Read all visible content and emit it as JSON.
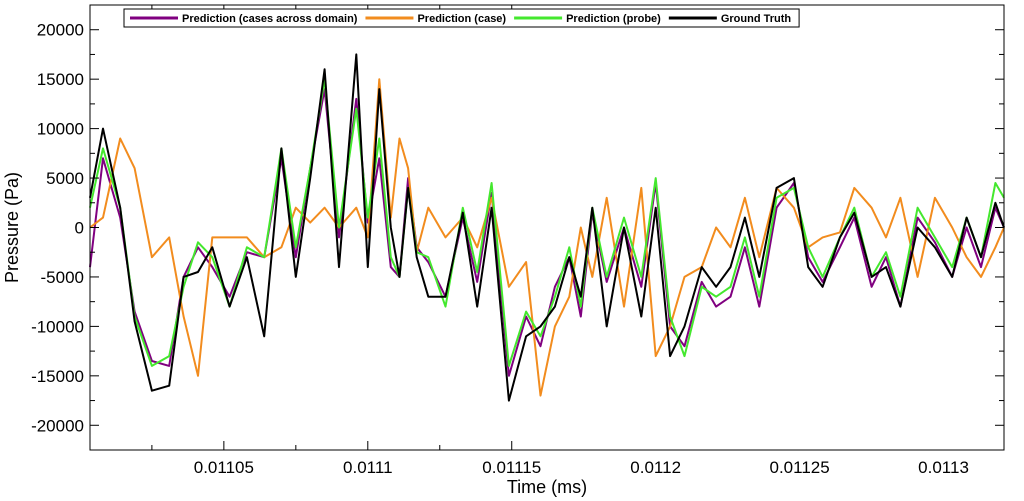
{
  "chart_data": {
    "type": "line",
    "xlabel": "Time (ms)",
    "ylabel": "Pressure (Pa)",
    "xlim": [
      0.0110035,
      0.011321
    ],
    "ylim": [
      -22500,
      22500
    ],
    "x_ticks": [
      0.01105,
      0.0111,
      0.01115,
      0.0112,
      0.01125,
      0.0113
    ],
    "x_tick_labels": [
      "0.01105",
      "0.0111",
      "0.01115",
      "0.0112",
      "0.01125",
      "0.0113"
    ],
    "y_ticks": [
      -20000,
      -15000,
      -10000,
      -5000,
      0,
      5000,
      10000,
      15000,
      20000
    ],
    "y_tick_labels": [
      "-20000",
      "-15000",
      "-10000",
      "-5000",
      "0",
      "5000",
      "10000",
      "15000",
      "20000"
    ],
    "grid": false,
    "legend_placement": "top-left",
    "x": [
      0.0110035,
      0.011008,
      0.011014,
      0.011019,
      0.011025,
      0.011031,
      0.011036,
      0.011041,
      0.011046,
      0.011052,
      0.011058,
      0.011064,
      0.01107,
      0.011075,
      0.01108,
      0.011085,
      0.01109,
      0.011096,
      0.0111,
      0.011104,
      0.011108,
      0.011111,
      0.011114,
      0.011117,
      0.011121,
      0.011127,
      0.011133,
      0.011138,
      0.011143,
      0.011149,
      0.011155,
      0.01116,
      0.011165,
      0.01117,
      0.011174,
      0.011178,
      0.011183,
      0.011189,
      0.011195,
      0.0112,
      0.011205,
      0.01121,
      0.011216,
      0.011221,
      0.011226,
      0.011231,
      0.011236,
      0.011242,
      0.011248,
      0.011253,
      0.011258,
      0.011264,
      0.011269,
      0.011275,
      0.01128,
      0.011285,
      0.011291,
      0.011297,
      0.011303,
      0.011308,
      0.011313,
      0.011318,
      0.011321
    ],
    "series": [
      {
        "name": "Prediction (cases across domain)",
        "color": "#800080",
        "values": [
          -4000,
          7000,
          1000,
          -8500,
          -13500,
          -14000,
          -5000,
          -2000,
          -4000,
          -7000,
          -2500,
          -3000,
          7000,
          -3000,
          6000,
          14000,
          -1000,
          13000,
          500,
          7000,
          -4000,
          -5000,
          5000,
          -2000,
          -3500,
          -7000,
          1000,
          -5500,
          3500,
          -15000,
          -9000,
          -12000,
          -6000,
          -3000,
          -9000,
          1500,
          -5500,
          0,
          -6000,
          4500,
          -10000,
          -12000,
          -5500,
          -8000,
          -7000,
          -2000,
          -8000,
          2000,
          4500,
          -3000,
          -5500,
          -2000,
          1000,
          -6000,
          -3000,
          -8000,
          1000,
          -1500,
          -5000,
          0,
          -4000,
          2000,
          0
        ]
      },
      {
        "name": "Prediction (case)",
        "color": "#F28C1E",
        "values": [
          0,
          1000,
          9000,
          6000,
          -3000,
          -1000,
          -9000,
          -15000,
          -1000,
          -1000,
          -1000,
          -3000,
          -2000,
          2000,
          500,
          2000,
          0,
          2000,
          -1000,
          15000,
          1000,
          9000,
          6000,
          -2500,
          2000,
          -1000,
          1000,
          -2000,
          3000,
          -6000,
          -3500,
          -17000,
          -10000,
          -7000,
          0,
          -5000,
          3000,
          -8000,
          4000,
          -13000,
          -10000,
          -5000,
          -4000,
          0,
          -2000,
          3000,
          -3000,
          4000,
          2000,
          -2000,
          -1000,
          -500,
          4000,
          2000,
          -1000,
          3000,
          -5000,
          3000,
          0,
          -3000,
          -5000,
          -2000,
          0
        ]
      },
      {
        "name": "Prediction (probe)",
        "color": "#44E82E",
        "values": [
          2000,
          8000,
          2000,
          -9000,
          -14000,
          -13000,
          -6000,
          -1500,
          -3000,
          -8000,
          -2000,
          -3000,
          8000,
          -2000,
          6000,
          15000,
          0,
          12000,
          1000,
          9000,
          -3000,
          -5000,
          4000,
          -2500,
          -3000,
          -8000,
          2000,
          -4500,
          4500,
          -14000,
          -8500,
          -11000,
          -7000,
          -2000,
          -8000,
          2000,
          -5000,
          1000,
          -5000,
          5000,
          -9000,
          -13000,
          -6000,
          -7000,
          -6000,
          -1000,
          -7000,
          3000,
          4000,
          -2000,
          -5000,
          -1000,
          2000,
          -5000,
          -2500,
          -7000,
          2000,
          -1000,
          -4000,
          1000,
          -3000,
          4500,
          3000
        ]
      },
      {
        "name": "Ground Truth",
        "color": "#000000",
        "values": [
          3000,
          10000,
          2000,
          -9500,
          -16500,
          -16000,
          -5000,
          -4500,
          -2000,
          -8000,
          -3000,
          -11000,
          8000,
          -5000,
          5000,
          16000,
          -4000,
          17500,
          -4000,
          14000,
          0,
          -5000,
          4000,
          -3000,
          -7000,
          -7000,
          1500,
          -8000,
          2000,
          -17500,
          -11000,
          -10000,
          -8000,
          -3000,
          -7000,
          2000,
          -10000,
          0,
          -9000,
          2000,
          -13000,
          -10000,
          -4000,
          -6000,
          -4000,
          1000,
          -5000,
          4000,
          5000,
          -4000,
          -6000,
          -1000,
          1500,
          -5000,
          -4000,
          -8000,
          0,
          -2000,
          -5000,
          1000,
          -3000,
          2500,
          0
        ]
      }
    ]
  }
}
